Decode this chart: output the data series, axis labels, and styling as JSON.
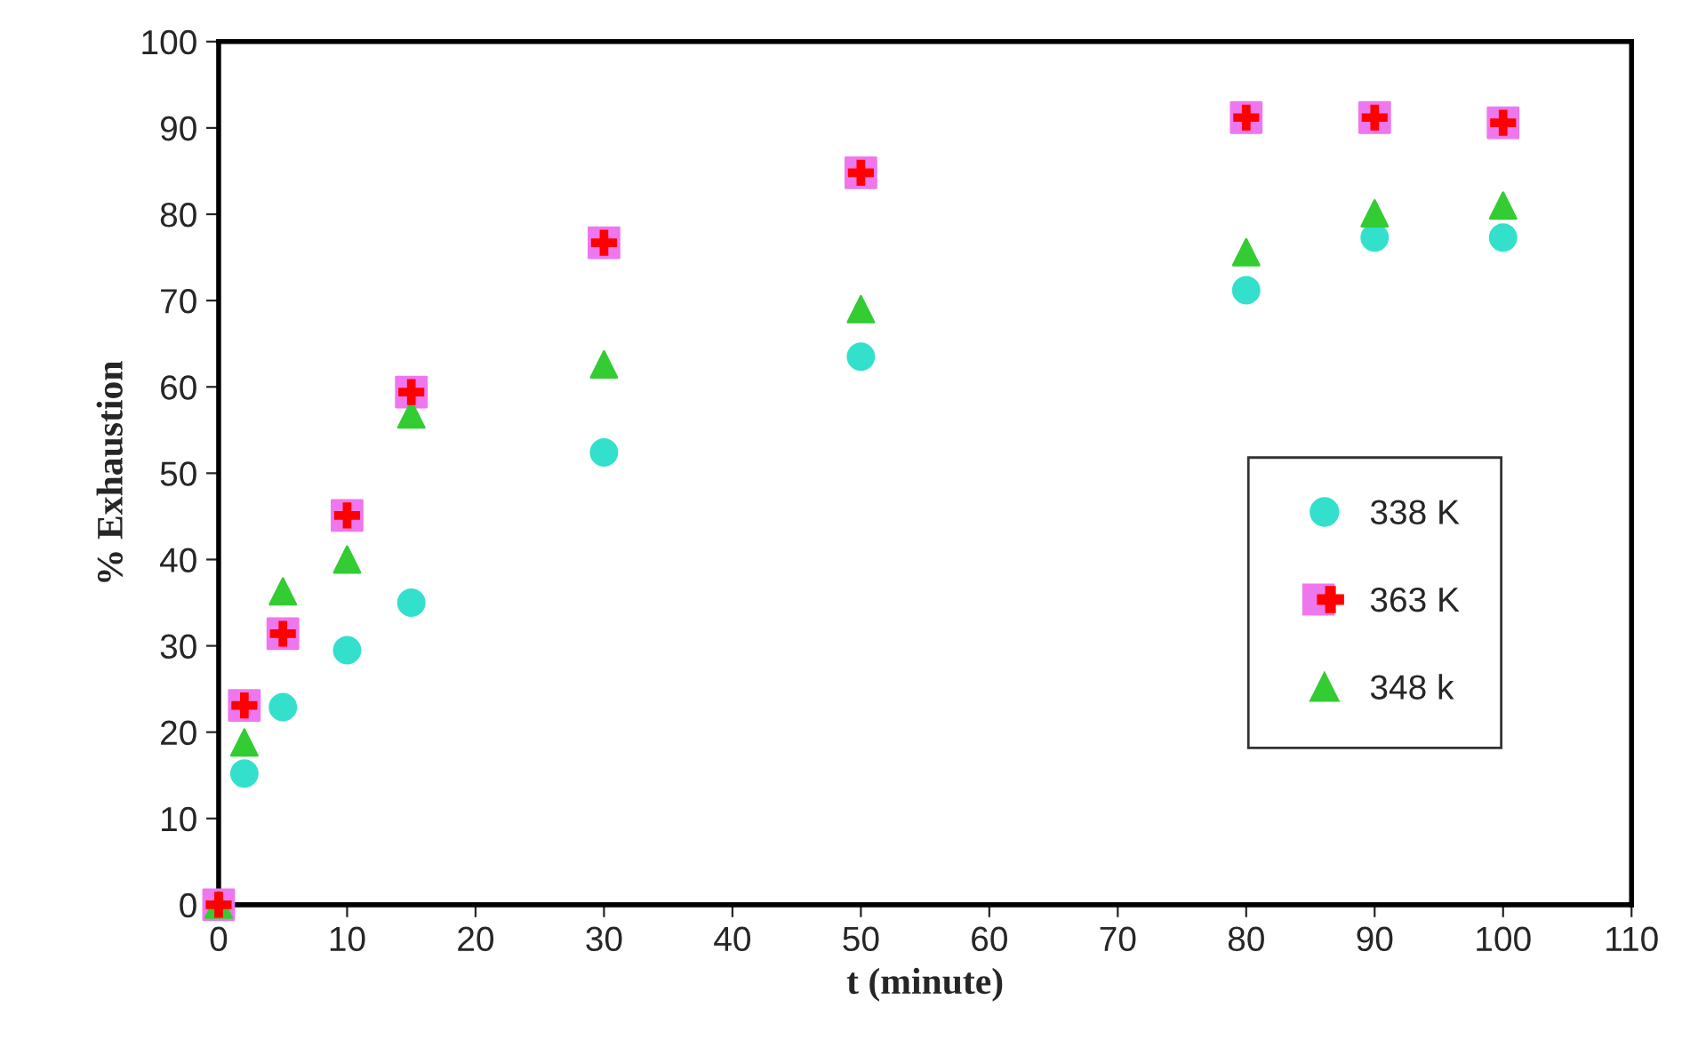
{
  "chart_data": {
    "type": "scatter",
    "xlabel": "t (minute)",
    "ylabel": "% Exhaustion",
    "x": [
      0,
      2,
      5,
      10,
      15,
      30,
      50,
      80,
      90,
      100
    ],
    "xlim": [
      0,
      110
    ],
    "xticks": [
      0,
      10,
      20,
      30,
      40,
      50,
      60,
      70,
      80,
      90,
      100,
      110
    ],
    "ylim": [
      0,
      100
    ],
    "yticks": [
      0,
      10,
      20,
      30,
      40,
      50,
      60,
      70,
      80,
      90,
      100
    ],
    "grid": false,
    "legend": "right",
    "series": [
      {
        "name": "338 K",
        "color": "#33e0cc",
        "marker": "circle",
        "values": [
          0,
          15.2,
          22.9,
          29.5,
          35,
          52.4,
          63.5,
          71.2,
          77.3,
          77.3
        ]
      },
      {
        "name": "363 K",
        "color": "#ee77ee",
        "marker": "square",
        "values": [
          0,
          23.1,
          31.4,
          45.1,
          59.4,
          76.7,
          84.8,
          91.2,
          91.2,
          90.6
        ]
      },
      {
        "name": "348 k",
        "color": "#33cc33",
        "marker": "triangle",
        "values": [
          0,
          18.8,
          36.3,
          40,
          56.8,
          62.6,
          69,
          75.6,
          80.1,
          81
        ]
      }
    ]
  }
}
